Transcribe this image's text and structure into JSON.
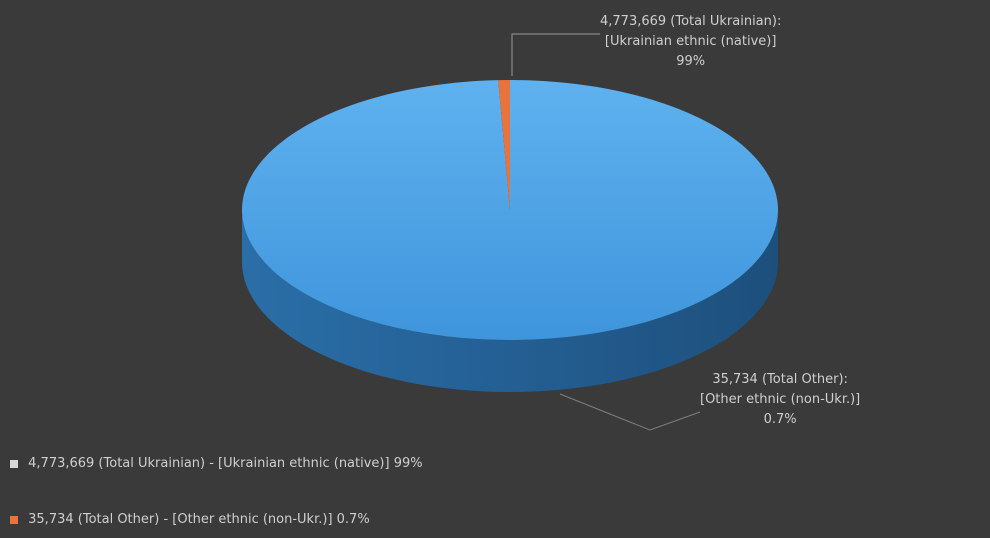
{
  "chart_data": {
    "type": "pie",
    "style": "3d",
    "labels": [
      "4,773,669 (Total Ukrainian: 99%)",
      "35,734 (Total Other: 1%)"
    ],
    "values": [
      99.3,
      0.7
    ],
    "slice_labels": [
      [
        "4,773,669 (Total Ukrainian):",
        "[Ukrainian ethnic (native)]",
        "99%"
      ],
      [
        "35,734 (Total Other):",
        "[Other ethnic (non-Ukr.)]",
        "0.7%"
      ]
    ],
    "legend": [
      "4,773,669 (Total Ukrainian) - [Ukrainian ethnic (native)] 99%",
      "35,734 (Total Other) - [Other ethnic (non-Ukr.)] 0.7%"
    ],
    "colors": [
      "#4aa3e8",
      "#e8743b"
    ],
    "legend_position": "bottom-left"
  }
}
